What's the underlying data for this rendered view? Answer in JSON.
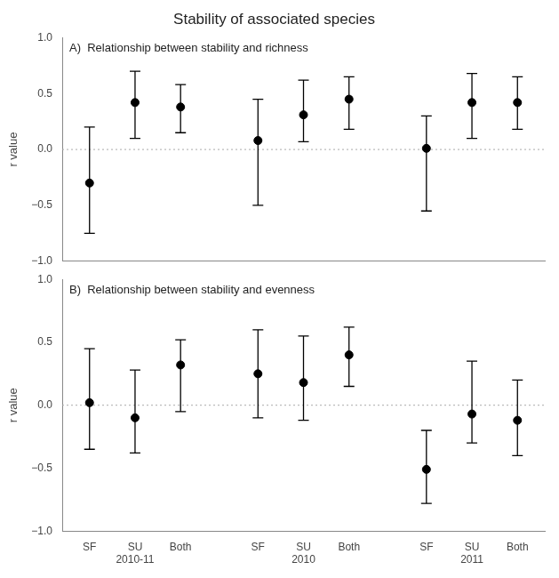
{
  "chart_data": [
    {
      "type": "scatter",
      "title": "Stability of associated species",
      "annotations": [
        "A)  Relationship between stability and richness"
      ],
      "y_label": "r value",
      "categories": [
        "SF",
        "SU",
        "Both",
        "SF",
        "SU",
        "Both",
        "SF",
        "SU",
        "Both"
      ],
      "values": [
        -0.3,
        0.42,
        0.38,
        0.08,
        0.31,
        0.45,
        0.01,
        0.42,
        0.42
      ],
      "ci_low": [
        -0.75,
        0.1,
        0.15,
        -0.5,
        0.07,
        0.18,
        -0.55,
        0.1,
        0.18
      ],
      "ci_high": [
        0.2,
        0.7,
        0.58,
        0.45,
        0.62,
        0.65,
        0.3,
        0.68,
        0.65
      ],
      "color": "black",
      "marker": "circle",
      "ylim": [
        -1.0,
        1.0
      ],
      "yticks": [
        {
          "value": -1.0,
          "label": "−1.0"
        },
        {
          "value": -0.5,
          "label": "−0.5"
        },
        {
          "value": 0.0,
          "label": "0.0"
        },
        0.5,
        {
          "value": 1.0,
          "label": "1.0"
        }
      ],
      "reference_y": 0,
      "grid": false,
      "tick_labels": "y"
    },
    {
      "type": "scatter",
      "annotations": [
        "B)  Relationship between stability and evenness"
      ],
      "y_label": "r value",
      "categories": [
        "SF",
        "SU",
        "Both",
        "SF",
        "SU",
        "Both",
        "SF",
        "SU",
        "Both"
      ],
      "groups": [
        "2010-11",
        "2010",
        "2011"
      ],
      "values": [
        0.02,
        -0.1,
        0.32,
        0.25,
        0.18,
        0.4,
        -0.51,
        -0.07,
        -0.12
      ],
      "ci_low": [
        -0.35,
        -0.38,
        -0.05,
        -0.1,
        -0.12,
        0.15,
        -0.78,
        -0.3,
        -0.4
      ],
      "ci_high": [
        0.45,
        0.28,
        0.52,
        0.6,
        0.55,
        0.62,
        -0.2,
        0.35,
        0.2
      ],
      "color": "black",
      "marker": "circle",
      "ylim": [
        -1.0,
        1.0
      ],
      "yticks": [
        {
          "value": -1.0,
          "label": "−1.0"
        },
        {
          "value": -0.5,
          "label": "−0.5"
        },
        {
          "value": 0.0,
          "label": "0.0"
        },
        0.5,
        {
          "value": 1.0,
          "label": "1.0"
        }
      ],
      "reference_y": 0,
      "grid": false
    }
  ]
}
